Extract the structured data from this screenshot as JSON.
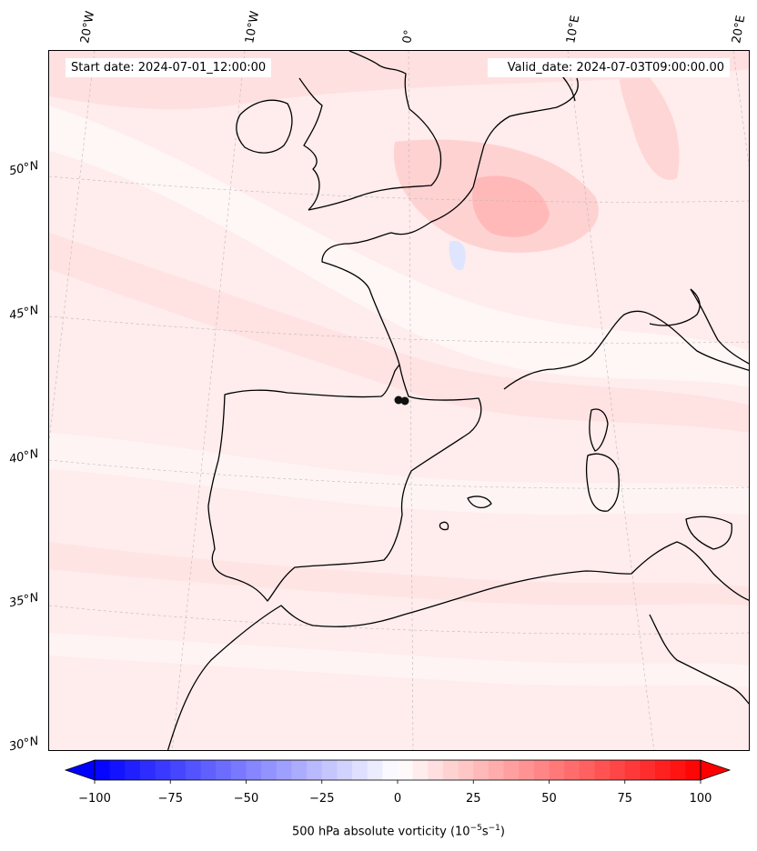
{
  "header": {
    "start_date": "Start date: 2024-07-01_12:00:00",
    "valid_date": "Valid_date: 2024-07-03T09:00:00.00"
  },
  "graticule": {
    "lon_labels": [
      "20°W",
      "10°W",
      "0°",
      "10°E",
      "20°E"
    ],
    "lat_labels": [
      "50°N",
      "45°N",
      "40°N",
      "35°N",
      "30°N"
    ]
  },
  "colorbar": {
    "title": "500 hPa absolute vorticity (10",
    "title_exp": "−5",
    "title_unit": "s",
    "title_exp2": "−1",
    "title_end": ")",
    "ticks": [
      "−100",
      "−75",
      "−50",
      "−25",
      "0",
      "25",
      "50",
      "75",
      "100"
    ],
    "min": -100,
    "max": 100,
    "step": 5,
    "colors": {
      "negative_extreme": "#0000ff",
      "neutral": "#ffffff",
      "positive_extreme": "#ff0000"
    }
  },
  "chart_data": {
    "type": "heatmap",
    "title": "500 hPa absolute vorticity",
    "variable": "500 hPa absolute vorticity (10^-5 s^-1)",
    "lon_range": [
      -20,
      20
    ],
    "lat_range": [
      30,
      52
    ],
    "color_range": [
      -100,
      100
    ],
    "start_date": "2024-07-01_12:00:00",
    "valid_date": "2024-07-03T09:00:00.00",
    "dominant_values": "mostly 0 to 15, up to ~30 over northern France"
  }
}
